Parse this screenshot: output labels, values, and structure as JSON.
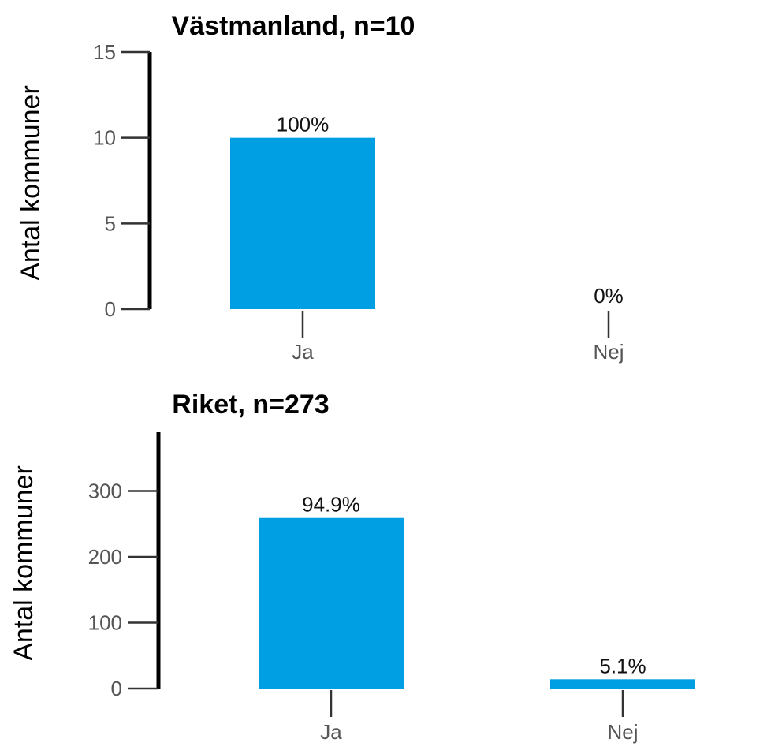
{
  "chart_data": [
    {
      "type": "bar",
      "title": "Västmanland, n=10",
      "ylabel": "Antal kommuner",
      "xlabel": "",
      "categories": [
        "Ja",
        "Nej"
      ],
      "values": [
        10,
        0
      ],
      "value_labels": [
        "100%",
        "0%"
      ],
      "ylim": [
        0,
        15
      ],
      "yticks": [
        0,
        5,
        10,
        15
      ],
      "bar_color": "#009fe3",
      "grid": false
    },
    {
      "type": "bar",
      "title": "Riket, n=273",
      "ylabel": "Antal kommuner",
      "xlabel": "",
      "categories": [
        "Ja",
        "Nej"
      ],
      "values": [
        259,
        14
      ],
      "value_labels": [
        "94.9%",
        "5.1%"
      ],
      "ylim": [
        0,
        390
      ],
      "yticks": [
        0,
        100,
        200,
        300
      ],
      "bar_color": "#009fe3",
      "grid": false
    }
  ]
}
